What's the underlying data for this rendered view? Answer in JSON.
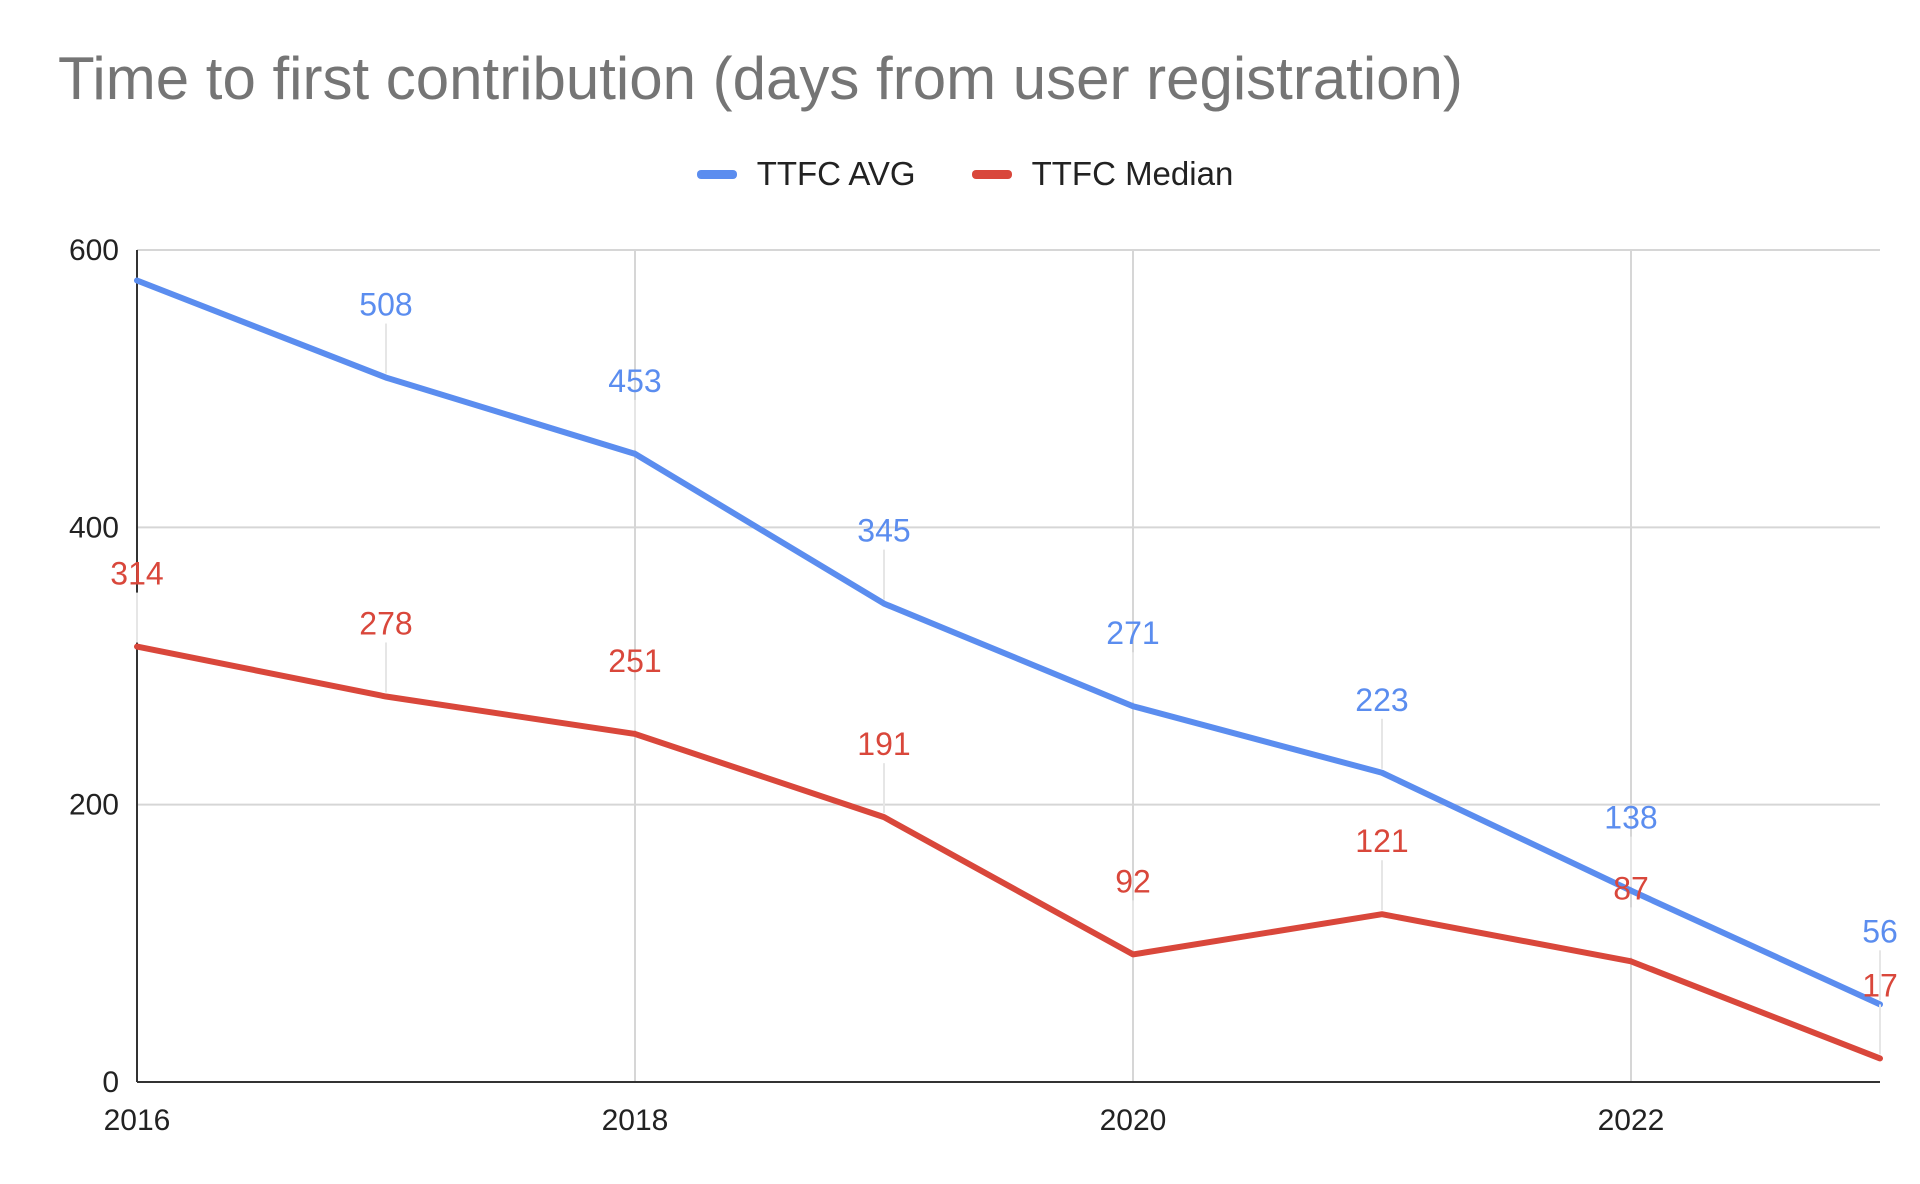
{
  "chart_data": {
    "type": "line",
    "title": "Time to first contribution (days from user registration)",
    "xlabel": "",
    "ylabel": "",
    "x": [
      2016,
      2017,
      2018,
      2019,
      2020,
      2021,
      2022,
      2023
    ],
    "x_ticks": [
      "2016",
      "2018",
      "2020",
      "2022"
    ],
    "y_ticks": [
      "0",
      "200",
      "400",
      "600"
    ],
    "ylim": [
      0,
      600
    ],
    "xlim": [
      2016,
      2023
    ],
    "grid": true,
    "legend_position": "top",
    "series": [
      {
        "name": "TTFC AVG",
        "color": "#5b8def",
        "values": [
          578,
          508,
          453,
          345,
          271,
          223,
          138,
          56
        ],
        "labels": [
          "",
          "508",
          "453",
          "345",
          "271",
          "223",
          "138",
          "56"
        ]
      },
      {
        "name": "TTFC Median",
        "color": "#d9473b",
        "values": [
          314,
          278,
          251,
          191,
          92,
          121,
          87,
          17
        ],
        "labels": [
          "314",
          "278",
          "251",
          "191",
          "92",
          "121",
          "87",
          "17"
        ]
      }
    ]
  }
}
